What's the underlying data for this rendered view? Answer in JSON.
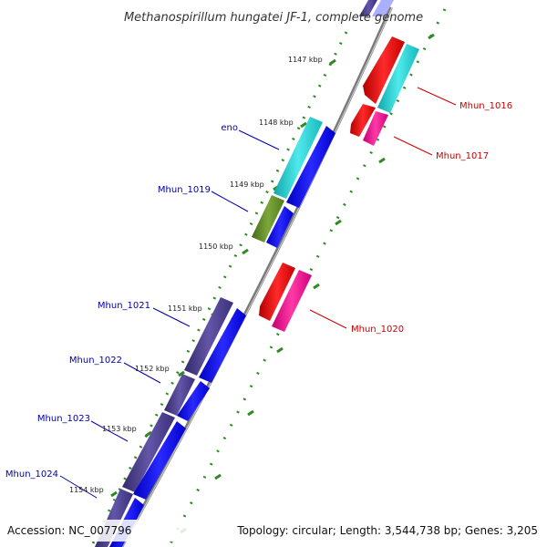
{
  "title": "Methanospirillum hungatei JF-1, complete genome",
  "footer": {
    "accession": "Accession: NC_007796",
    "topology": "Topology: circular; Length: 3,544,738 bp; Genes: 3,205"
  },
  "kbp_labels": [
    "1147 kbp",
    "1148 kbp",
    "1149 kbp",
    "1150 kbp",
    "1151 kbp",
    "1152 kbp",
    "1153 kbp",
    "1154 kbp"
  ],
  "genes": {
    "mhun_1016": "Mhun_1016",
    "mhun_1017": "Mhun_1017",
    "eno": "eno",
    "mhun_1019": "Mhun_1019",
    "mhun_1020": "Mhun_1020",
    "mhun_1021": "Mhun_1021",
    "mhun_1022": "Mhun_1022",
    "mhun_1023": "Mhun_1023",
    "mhun_1024": "Mhun_1024"
  },
  "colors": {
    "backbone": "#808080",
    "tick": "#2e8b22",
    "red": "#ff0000",
    "pink": "#ff1493",
    "cyan": "#1fd3d6",
    "blue": "#0a0aff",
    "olive": "#5f8e23",
    "slate": "#4b3f8c",
    "label_blue": "#0000aa",
    "label_red": "#cc0000"
  }
}
